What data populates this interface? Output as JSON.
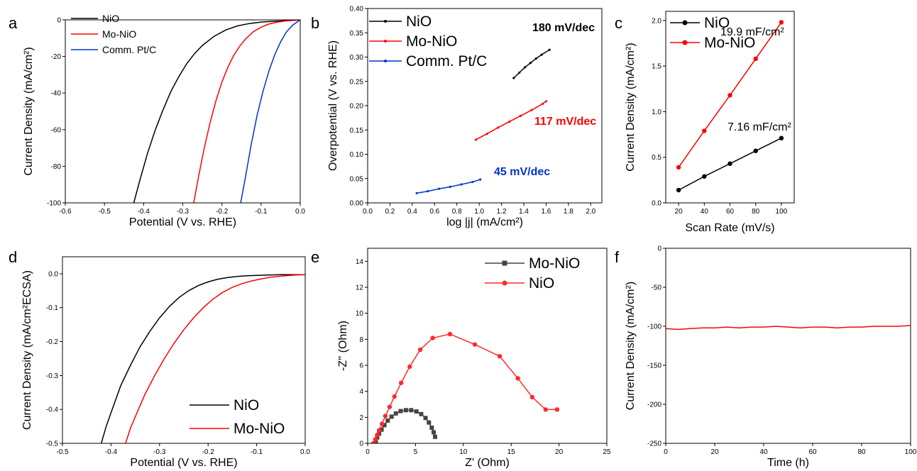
{
  "chart_data": [
    {
      "panel": "a",
      "type": "line",
      "xlabel": "Potential (V vs. RHE)",
      "ylabel": "Current Density (mA/cm²)",
      "xlim": [
        -0.6,
        0.0
      ],
      "ylim": [
        -100,
        0
      ],
      "xticks": [
        -0.6,
        -0.5,
        -0.4,
        -0.3,
        -0.2,
        -0.1,
        0.0
      ],
      "yticks": [
        -100,
        -80,
        -60,
        -40,
        -20,
        0
      ],
      "legend": "top-left",
      "series": [
        {
          "name": "NiO",
          "color": "#000000",
          "x": [
            -0.425,
            -0.41,
            -0.39,
            -0.37,
            -0.35,
            -0.33,
            -0.31,
            -0.29,
            -0.27,
            -0.25,
            -0.22,
            -0.19,
            -0.16,
            -0.13,
            -0.1,
            -0.07,
            -0.04,
            -0.02,
            0.0
          ],
          "y": [
            -100,
            -88,
            -73,
            -60,
            -49,
            -39,
            -31,
            -24,
            -18.5,
            -14,
            -9,
            -5.5,
            -3.3,
            -2,
            -1.2,
            -0.8,
            -0.5,
            -0.3,
            0
          ]
        },
        {
          "name": "Mo-NiO",
          "color": "#ff0000",
          "x": [
            -0.272,
            -0.26,
            -0.245,
            -0.23,
            -0.215,
            -0.2,
            -0.185,
            -0.17,
            -0.155,
            -0.14,
            -0.12,
            -0.1,
            -0.08,
            -0.06,
            -0.04,
            -0.02,
            0.0
          ],
          "y": [
            -100,
            -86,
            -70,
            -56,
            -44,
            -34,
            -26,
            -19.5,
            -14.5,
            -10.5,
            -6.5,
            -4,
            -2.3,
            -1.3,
            -0.7,
            -0.3,
            0
          ]
        },
        {
          "name": "Comm. Pt/C",
          "color": "#0033cc",
          "x": [
            -0.152,
            -0.14,
            -0.125,
            -0.11,
            -0.095,
            -0.08,
            -0.065,
            -0.05,
            -0.035,
            -0.02,
            -0.01,
            0.0
          ],
          "y": [
            -100,
            -86,
            -68,
            -52,
            -39,
            -28,
            -19,
            -12,
            -6.5,
            -3,
            -1.5,
            0
          ]
        }
      ]
    },
    {
      "panel": "b",
      "type": "line",
      "xlabel": "log |j| (mA/cm²)",
      "ylabel": "Overpotential (V vs. RHE)",
      "xlim": [
        0.0,
        2.1
      ],
      "ylim": [
        0.0,
        0.4
      ],
      "xticks": [
        0.0,
        0.2,
        0.4,
        0.6,
        0.8,
        1.0,
        1.2,
        1.4,
        1.6,
        1.8,
        2.0
      ],
      "yticks": [
        0.0,
        0.05,
        0.1,
        0.15,
        0.2,
        0.25,
        0.3,
        0.35,
        0.4
      ],
      "legend": "top-left",
      "series": [
        {
          "name": "NiO",
          "color": "#000000",
          "x": [
            1.31,
            1.36,
            1.41,
            1.46,
            1.51,
            1.56,
            1.63
          ],
          "y": [
            0.257,
            0.268,
            0.279,
            0.288,
            0.297,
            0.305,
            0.315
          ]
        },
        {
          "name": "Mo-NiO",
          "color": "#ff0000",
          "x": [
            0.97,
            1.07,
            1.17,
            1.27,
            1.37,
            1.47,
            1.57,
            1.6
          ],
          "y": [
            0.13,
            0.142,
            0.155,
            0.167,
            0.179,
            0.191,
            0.204,
            0.209
          ]
        },
        {
          "name": "Comm. Pt/C",
          "color": "#0033cc",
          "x": [
            0.44,
            0.54,
            0.64,
            0.74,
            0.84,
            0.94,
            1.01
          ],
          "y": [
            0.02,
            0.024,
            0.029,
            0.033,
            0.038,
            0.043,
            0.048
          ]
        }
      ],
      "annotations": [
        {
          "text": "180 mV/dec",
          "color": "#000000"
        },
        {
          "text": "117 mV/dec",
          "color": "#ff0000"
        },
        {
          "text": "45 mV/dec",
          "color": "#0033cc"
        }
      ]
    },
    {
      "panel": "c",
      "type": "line",
      "xlabel": "Scan Rate (mV/s)",
      "ylabel": "Current Density (mA/cm²)",
      "xlim": [
        10,
        110
      ],
      "ylim": [
        0.0,
        2.1
      ],
      "xticks": [
        20,
        40,
        60,
        80,
        100
      ],
      "yticks": [
        0.0,
        0.5,
        1.0,
        1.5,
        2.0
      ],
      "legend": "top-left",
      "series": [
        {
          "name": "NiO",
          "color": "#000000",
          "x": [
            20,
            40,
            60,
            80,
            100
          ],
          "y": [
            0.14,
            0.29,
            0.43,
            0.57,
            0.71
          ]
        },
        {
          "name": "Mo-NiO",
          "color": "#ff0000",
          "x": [
            20,
            40,
            60,
            80,
            100
          ],
          "y": [
            0.39,
            0.79,
            1.18,
            1.58,
            1.98
          ]
        }
      ],
      "annotations": [
        {
          "text": "19.9 mF/cm²",
          "color": "#ff0000"
        },
        {
          "text": "7.16 mF/cm²",
          "color": "#000000"
        }
      ]
    },
    {
      "panel": "d",
      "type": "line",
      "xlabel": "Potential (V vs. RHE)",
      "ylabel": "Current Density (mA/cm²ECSA)",
      "xlim": [
        -0.5,
        0.0
      ],
      "ylim": [
        -0.5,
        0.05
      ],
      "xticks": [
        -0.5,
        -0.4,
        -0.3,
        -0.2,
        -0.1,
        0.0
      ],
      "yticks": [
        -0.5,
        -0.4,
        -0.3,
        -0.2,
        -0.1,
        0.0
      ],
      "legend": "bottom-right",
      "series": [
        {
          "name": "NiO",
          "color": "#000000",
          "x": [
            -0.42,
            -0.41,
            -0.395,
            -0.38,
            -0.36,
            -0.34,
            -0.32,
            -0.3,
            -0.28,
            -0.26,
            -0.24,
            -0.22,
            -0.2,
            -0.18,
            -0.16,
            -0.14,
            -0.12,
            -0.1,
            -0.08,
            -0.05,
            -0.02,
            0.0
          ],
          "y": [
            -0.5,
            -0.45,
            -0.39,
            -0.33,
            -0.27,
            -0.215,
            -0.17,
            -0.13,
            -0.097,
            -0.07,
            -0.05,
            -0.035,
            -0.024,
            -0.016,
            -0.011,
            -0.008,
            -0.006,
            -0.005,
            -0.004,
            -0.003,
            -0.003,
            -0.003
          ]
        },
        {
          "name": "Mo-NiO",
          "color": "#ff0000",
          "x": [
            -0.37,
            -0.36,
            -0.345,
            -0.33,
            -0.31,
            -0.29,
            -0.27,
            -0.25,
            -0.23,
            -0.21,
            -0.19,
            -0.17,
            -0.15,
            -0.13,
            -0.11,
            -0.09,
            -0.07,
            -0.05,
            -0.02,
            0.0
          ],
          "y": [
            -0.5,
            -0.455,
            -0.405,
            -0.355,
            -0.3,
            -0.25,
            -0.205,
            -0.165,
            -0.13,
            -0.1,
            -0.075,
            -0.055,
            -0.04,
            -0.029,
            -0.021,
            -0.015,
            -0.01,
            -0.007,
            -0.004,
            -0.003
          ]
        }
      ]
    },
    {
      "panel": "e",
      "type": "scatter",
      "xlabel": "Z' (Ohm)",
      "ylabel": "-Z'' (Ohm)",
      "xlim": [
        0,
        25
      ],
      "ylim": [
        0,
        15
      ],
      "xticks": [
        0,
        5,
        10,
        15,
        20,
        25
      ],
      "yticks": [
        0,
        2,
        4,
        6,
        8,
        10,
        12,
        14
      ],
      "legend": "top-right",
      "series": [
        {
          "name": "Mo-NiO",
          "color": "#444444",
          "marker": "square",
          "x": [
            0.7,
            0.85,
            1.0,
            1.2,
            1.45,
            1.75,
            2.1,
            2.5,
            2.95,
            3.45,
            4.0,
            4.55,
            5.1,
            5.6,
            6.05,
            6.4,
            6.7,
            6.9,
            7.05
          ],
          "y": [
            0.0,
            0.2,
            0.45,
            0.75,
            1.05,
            1.4,
            1.75,
            2.05,
            2.3,
            2.48,
            2.55,
            2.55,
            2.45,
            2.25,
            1.95,
            1.6,
            1.2,
            0.85,
            0.5
          ]
        },
        {
          "name": "NiO",
          "color": "#ff2a2a",
          "marker": "circle",
          "x": [
            0.6,
            0.8,
            1.0,
            1.2,
            1.5,
            1.85,
            2.3,
            2.8,
            3.5,
            4.4,
            5.5,
            6.8,
            8.6,
            11.2,
            13.8,
            15.7,
            17.2,
            18.6,
            19.8
          ],
          "y": [
            0.0,
            0.3,
            0.65,
            1.0,
            1.5,
            2.1,
            2.8,
            3.6,
            4.65,
            5.9,
            7.2,
            8.1,
            8.4,
            7.6,
            6.7,
            5.0,
            3.55,
            2.6,
            2.6
          ]
        }
      ]
    },
    {
      "panel": "f",
      "type": "line",
      "xlabel": "Time (h)",
      "ylabel": "Current Density (mA/cm²)",
      "xlim": [
        0,
        100
      ],
      "ylim": [
        -250,
        0
      ],
      "xticks": [
        0,
        20,
        40,
        60,
        80,
        100
      ],
      "yticks": [
        -250,
        -200,
        -150,
        -100,
        -50,
        0
      ],
      "series": [
        {
          "name": "",
          "color": "#ff0000",
          "x": [
            0,
            5,
            10,
            15,
            20,
            25,
            30,
            35,
            40,
            45,
            50,
            55,
            60,
            65,
            70,
            75,
            80,
            85,
            90,
            95,
            100
          ],
          "y": [
            -103,
            -104,
            -103,
            -102,
            -102,
            -101,
            -102,
            -101,
            -101,
            -100,
            -101,
            -102,
            -101,
            -101,
            -102,
            -101,
            -101,
            -100,
            -100,
            -100,
            -99
          ]
        }
      ]
    }
  ]
}
